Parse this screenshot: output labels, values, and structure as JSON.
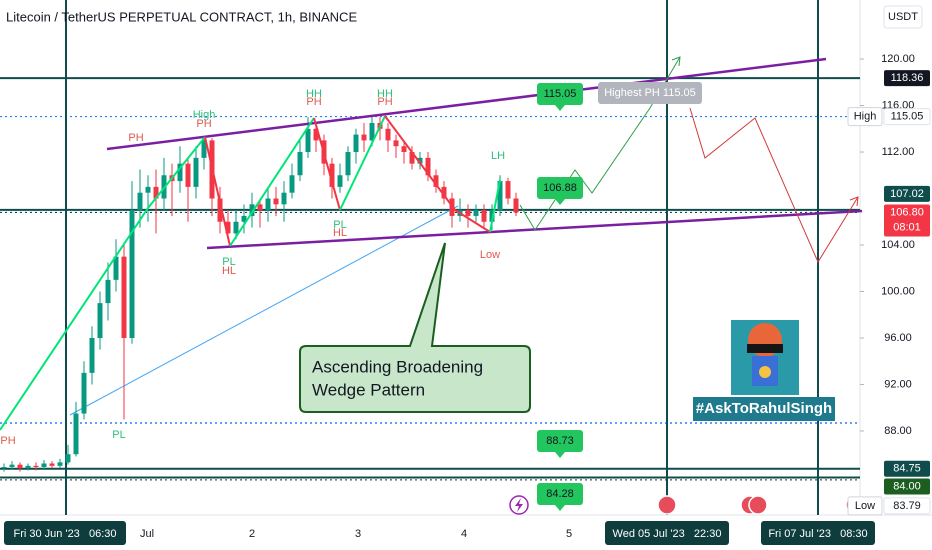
{
  "chart_data": {
    "type": "candlestick",
    "title": "Litecoin / TetherUS PERPETUAL CONTRACT, 1h, BINANCE",
    "currency": "USDT",
    "up_color": "#089981",
    "down_color": "#f23645",
    "ylim": [
      80.77,
      125.08
    ],
    "yticks": [
      {
        "value": 88,
        "label": "88.00"
      },
      {
        "value": 92,
        "label": "92.00"
      },
      {
        "value": 96,
        "label": "96.00"
      },
      {
        "value": 100,
        "label": "100.00"
      },
      {
        "value": 104,
        "label": "104.00"
      },
      {
        "value": 112,
        "label": "112.00"
      },
      {
        "value": 116,
        "label": "116.00"
      },
      {
        "value": 120,
        "label": "120.00"
      }
    ],
    "x_labels": [
      "Fri 30 Jun '23   06:30",
      "Jul",
      "2",
      "3",
      "4",
      "5",
      "Wed 05 Jul '23   22:30",
      "Fri 07 Jul '23   08:30"
    ],
    "ohlc": [
      [
        84.8,
        85.2,
        84.5,
        84.9
      ],
      [
        84.9,
        85.4,
        84.7,
        85.1
      ],
      [
        85.1,
        85.3,
        84.5,
        84.8
      ],
      [
        84.8,
        85.2,
        84.6,
        85.0
      ],
      [
        85.0,
        85.3,
        84.6,
        84.9
      ],
      [
        84.9,
        85.5,
        84.7,
        85.2
      ],
      [
        85.2,
        85.4,
        84.8,
        85.0
      ],
      [
        85.0,
        85.6,
        84.8,
        85.3
      ],
      [
        85.3,
        86.8,
        85.1,
        86.0
      ],
      [
        86.0,
        90.5,
        85.8,
        89.5
      ],
      [
        89.5,
        94.0,
        89.0,
        93.0
      ],
      [
        93.0,
        97.0,
        92.0,
        96.0
      ],
      [
        96.0,
        100.0,
        95.0,
        99.0
      ],
      [
        99.0,
        102.5,
        97.5,
        101.0
      ],
      [
        101.0,
        104.5,
        100.0,
        103.0
      ],
      [
        103.0,
        104.0,
        89.0,
        96.0
      ],
      [
        96.0,
        109.5,
        95.5,
        107.0
      ],
      [
        107.0,
        110.5,
        105.5,
        108.5
      ],
      [
        108.5,
        110.0,
        106.0,
        109.0
      ],
      [
        109.0,
        110.5,
        105.0,
        108.0
      ],
      [
        108.0,
        111.5,
        107.0,
        110.0
      ],
      [
        110.0,
        111.0,
        106.5,
        109.5
      ],
      [
        109.5,
        112.5,
        108.5,
        111.0
      ],
      [
        111.0,
        111.5,
        106.0,
        109.0
      ],
      [
        109.0,
        112.5,
        108.0,
        111.5
      ],
      [
        111.5,
        113.3,
        110.5,
        113.0
      ],
      [
        113.0,
        113.2,
        106.5,
        108.0
      ],
      [
        108.0,
        109.0,
        105.0,
        106.0
      ],
      [
        106.0,
        107.0,
        104.4,
        105.0
      ],
      [
        105.0,
        107.0,
        104.5,
        106.0
      ],
      [
        106.0,
        107.5,
        105.0,
        106.5
      ],
      [
        106.5,
        108.5,
        105.5,
        107.5
      ],
      [
        107.5,
        108.0,
        105.5,
        107.0
      ],
      [
        107.0,
        109.0,
        106.0,
        108.0
      ],
      [
        108.0,
        109.0,
        106.5,
        107.5
      ],
      [
        107.5,
        109.5,
        106.0,
        108.5
      ],
      [
        108.5,
        111.0,
        108.0,
        110.0
      ],
      [
        110.0,
        113.0,
        109.5,
        112.0
      ],
      [
        112.0,
        115.0,
        111.5,
        114.0
      ],
      [
        114.0,
        114.5,
        112.0,
        113.0
      ],
      [
        113.0,
        113.5,
        110.0,
        111.0
      ],
      [
        111.0,
        111.5,
        108.0,
        109.0
      ],
      [
        109.0,
        111.0,
        108.5,
        110.0
      ],
      [
        110.0,
        112.5,
        109.5,
        112.0
      ],
      [
        112.0,
        114.0,
        111.0,
        113.5
      ],
      [
        113.5,
        114.5,
        112.0,
        113.0
      ],
      [
        113.0,
        115.05,
        112.5,
        114.5
      ],
      [
        114.5,
        115.0,
        113.0,
        114.0
      ],
      [
        114.0,
        114.5,
        112.0,
        113.0
      ],
      [
        113.0,
        113.5,
        111.5,
        112.5
      ],
      [
        112.5,
        113.0,
        111.0,
        112.0
      ],
      [
        112.0,
        112.5,
        110.5,
        111.0
      ],
      [
        111.0,
        112.0,
        110.5,
        111.5
      ],
      [
        111.5,
        112.0,
        109.5,
        110.0
      ],
      [
        110.0,
        110.5,
        108.5,
        109.0
      ],
      [
        109.0,
        109.5,
        107.5,
        108.0
      ],
      [
        108.0,
        108.5,
        105.5,
        106.5
      ],
      [
        106.5,
        108.0,
        106.0,
        107.0
      ],
      [
        107.0,
        107.5,
        105.5,
        106.5
      ],
      [
        106.5,
        107.5,
        106.0,
        107.0
      ],
      [
        107.0,
        107.5,
        105.5,
        106.0
      ],
      [
        106.0,
        107.5,
        105.3,
        107.0
      ],
      [
        107.0,
        110.0,
        106.5,
        109.5
      ],
      [
        109.5,
        109.8,
        107.5,
        108.0
      ],
      [
        108.0,
        108.5,
        106.5,
        106.8
      ]
    ],
    "price_lines": [
      {
        "value": 118.36,
        "line_color": "#0f4c4c",
        "line_style": "solid",
        "box_color": "#131722",
        "text_color": "#ffffff"
      },
      {
        "value": 115.05,
        "tag": "High",
        "line_color": "#2a7fff",
        "line_style": "dotted",
        "box_color": "#ffffff",
        "text_color": "#131722"
      },
      {
        "value": 107.02,
        "line_color": "#0f4c4c",
        "line_style": "solid",
        "box_color": "#0f4c4c",
        "text_color": "#ffffff"
      },
      {
        "value": 106.8,
        "label": "106.80",
        "tag": "08:01",
        "line_color": "#0f4c4c",
        "line_style": "dotted",
        "box_color": "#f23645",
        "text_color": "#ffffff"
      },
      {
        "value": 84.75,
        "line_color": "#0f4c4c",
        "line_style": "solid",
        "box_color": "#0f4c4c",
        "text_color": "#ffffff"
      },
      {
        "value": 84,
        "label": "84.00",
        "line_color": "#0f4c4c",
        "line_style": "solid",
        "box_color": "#1b5e20",
        "text_color": "#ffffff"
      },
      {
        "value": 83.79,
        "tag": "Low",
        "line_color": "#555555",
        "line_style": "dotted",
        "box_color": "#ffffff",
        "text_color": "#131722"
      }
    ],
    "annotations": [
      {
        "text": "PH",
        "color": "#e0584f"
      },
      {
        "text": "PH",
        "color": "#e0584f"
      },
      {
        "text": "High",
        "color": "#2bbf7a"
      },
      {
        "text": "PH",
        "color": "#e0584f"
      },
      {
        "text": "HH",
        "color": "#2bbf7a"
      },
      {
        "text": "PH",
        "color": "#e0584f"
      },
      {
        "text": "HH",
        "color": "#2bbf7a"
      },
      {
        "text": "PH",
        "color": "#e0584f"
      },
      {
        "text": "PL",
        "color": "#2bbf7a"
      },
      {
        "text": "HL",
        "color": "#e0584f"
      },
      {
        "text": "PL",
        "color": "#2bbf7a"
      },
      {
        "text": "HL",
        "color": "#e0584f"
      },
      {
        "text": "PL",
        "color": "#2bbf7a"
      },
      {
        "text": "LH",
        "color": "#2bbf7a"
      },
      {
        "text": "Low",
        "color": "#e0584f"
      }
    ],
    "price_boxes": [
      115.05,
      106.88,
      88.73,
      84.28
    ],
    "highest_label": "Highest PH 115.05",
    "callout": [
      "Ascending Broadening",
      "Wedge Pattern"
    ],
    "hashtag": "#AskToRahulSingh"
  }
}
